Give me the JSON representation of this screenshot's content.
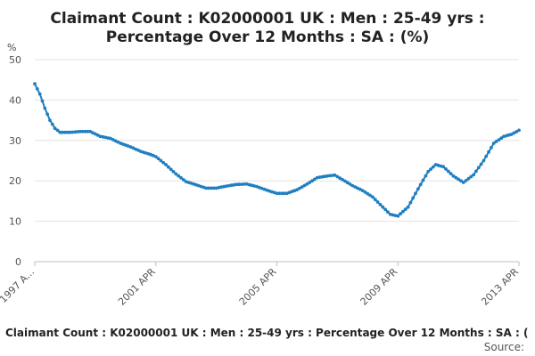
{
  "chart_data": {
    "type": "line",
    "title_lines": [
      "Claimant Count : K02000001 UK : Men : 25-49 yrs :",
      "Percentage Over 12 Months : SA : (%)"
    ],
    "unit_label": "%",
    "ylim": [
      0,
      50
    ],
    "y_ticks": [
      0,
      10,
      20,
      30,
      40,
      50
    ],
    "x_tick_labels": [
      "1997 A...",
      "2001 APR",
      "2005 APR",
      "2009 APR",
      "2013 APR"
    ],
    "x_tick_index": [
      0,
      48,
      96,
      144,
      192
    ],
    "grid": true,
    "color": "#1f7fc1",
    "series": [
      {
        "name": "",
        "x_start": "1997-04",
        "x_frequency": "monthly",
        "anchor_points": [
          [
            "1997-04",
            44.0
          ],
          [
            "1997-06",
            41.5
          ],
          [
            "1997-08",
            38.0
          ],
          [
            "1997-10",
            35.0
          ],
          [
            "1997-12",
            33.0
          ],
          [
            "1998-02",
            32.0
          ],
          [
            "1998-06",
            32.0
          ],
          [
            "1998-10",
            32.2
          ],
          [
            "1999-02",
            32.2
          ],
          [
            "1999-06",
            31.0
          ],
          [
            "1999-10",
            30.5
          ],
          [
            "2000-02",
            29.3
          ],
          [
            "2000-06",
            28.4
          ],
          [
            "2000-10",
            27.3
          ],
          [
            "2001-02",
            26.5
          ],
          [
            "2001-04",
            26.0
          ],
          [
            "2001-08",
            24.0
          ],
          [
            "2001-12",
            21.7
          ],
          [
            "2002-04",
            19.8
          ],
          [
            "2002-08",
            19.0
          ],
          [
            "2002-12",
            18.2
          ],
          [
            "2003-04",
            18.2
          ],
          [
            "2003-08",
            18.7
          ],
          [
            "2003-12",
            19.1
          ],
          [
            "2004-04",
            19.2
          ],
          [
            "2004-08",
            18.6
          ],
          [
            "2004-12",
            17.7
          ],
          [
            "2005-04",
            16.9
          ],
          [
            "2005-08",
            16.9
          ],
          [
            "2005-12",
            17.8
          ],
          [
            "2006-04",
            19.2
          ],
          [
            "2006-08",
            20.8
          ],
          [
            "2006-12",
            21.2
          ],
          [
            "2007-03",
            21.4
          ],
          [
            "2007-06",
            20.3
          ],
          [
            "2007-10",
            18.8
          ],
          [
            "2008-02",
            17.6
          ],
          [
            "2008-06",
            16.0
          ],
          [
            "2008-10",
            13.5
          ],
          [
            "2009-01",
            11.7
          ],
          [
            "2009-04",
            11.3
          ],
          [
            "2009-08",
            13.5
          ],
          [
            "2009-12",
            18.0
          ],
          [
            "2010-04",
            22.3
          ],
          [
            "2010-07",
            24.0
          ],
          [
            "2010-10",
            23.5
          ],
          [
            "2011-02",
            21.2
          ],
          [
            "2011-06",
            19.6
          ],
          [
            "2011-10",
            21.5
          ],
          [
            "2012-02",
            25.0
          ],
          [
            "2012-06",
            29.3
          ],
          [
            "2012-10",
            31.0
          ],
          [
            "2013-01",
            31.5
          ],
          [
            "2013-04",
            32.5
          ]
        ]
      }
    ]
  },
  "footer": {
    "series_label": "Claimant Count : K02000001 UK : Men : 25-49 yrs : Percentage Over 12 Months : SA : (",
    "source_label": "Source:"
  }
}
